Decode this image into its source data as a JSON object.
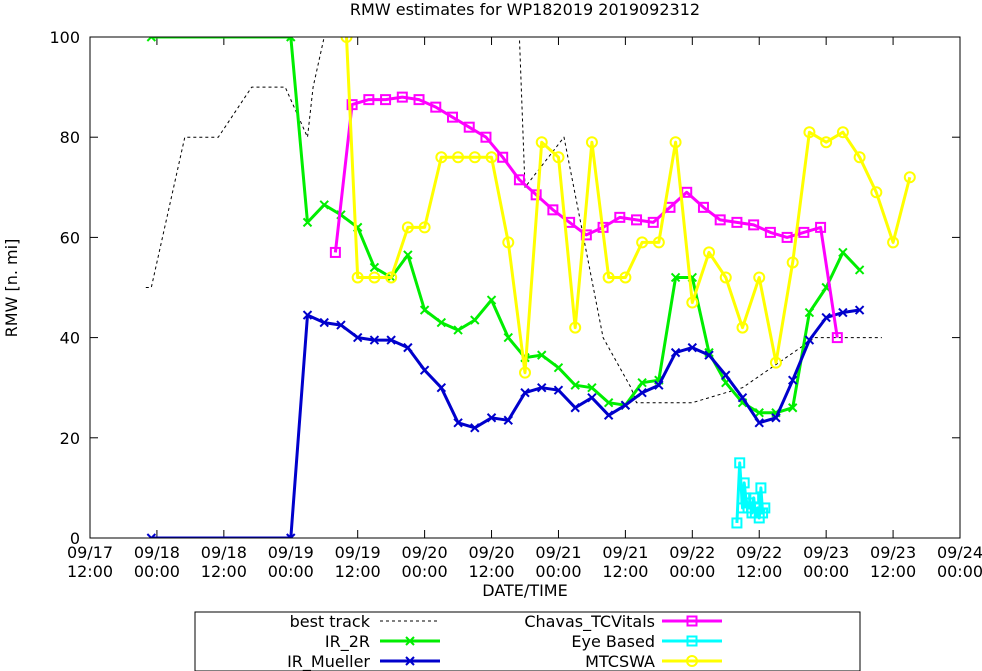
{
  "chart_data": {
    "type": "line",
    "title": "RMW estimates for WP182019 2019092312",
    "xlabel": "DATE/TIME",
    "ylabel": "RMW [n. mi]",
    "ylim": [
      0,
      100
    ],
    "xlim_hours": [
      0,
      156
    ],
    "yticks": [
      {
        "value": 0,
        "label": "0"
      },
      {
        "value": 20,
        "label": "20"
      },
      {
        "value": 40,
        "label": "40"
      },
      {
        "value": 60,
        "label": "60"
      },
      {
        "value": 80,
        "label": "80"
      },
      {
        "value": 100,
        "label": "100"
      }
    ],
    "xticks": [
      {
        "hours": 0,
        "line1": "09/17",
        "line2": "12:00"
      },
      {
        "hours": 12,
        "line1": "09/18",
        "line2": "00:00"
      },
      {
        "hours": 24,
        "line1": "09/18",
        "line2": "12:00"
      },
      {
        "hours": 36,
        "line1": "09/19",
        "line2": "00:00"
      },
      {
        "hours": 48,
        "line1": "09/19",
        "line2": "12:00"
      },
      {
        "hours": 60,
        "line1": "09/20",
        "line2": "00:00"
      },
      {
        "hours": 72,
        "line1": "09/20",
        "line2": "12:00"
      },
      {
        "hours": 84,
        "line1": "09/21",
        "line2": "00:00"
      },
      {
        "hours": 96,
        "line1": "09/21",
        "line2": "12:00"
      },
      {
        "hours": 108,
        "line1": "09/22",
        "line2": "00:00"
      },
      {
        "hours": 120,
        "line1": "09/22",
        "line2": "12:00"
      },
      {
        "hours": 132,
        "line1": "09/23",
        "line2": "00:00"
      },
      {
        "hours": 144,
        "line1": "09/23",
        "line2": "12:00"
      },
      {
        "hours": 156,
        "line1": "09/24",
        "line2": "00:00"
      }
    ],
    "series": [
      {
        "name": "best track",
        "color": "#000000",
        "style": "dashed",
        "marker": "none",
        "x": [
          10,
          11,
          17,
          23,
          29,
          35,
          39,
          40,
          42,
          43,
          77,
          78,
          85,
          92,
          97,
          98,
          108,
          117,
          130,
          142
        ],
        "y": [
          50,
          50,
          80,
          80,
          90,
          90,
          80,
          90,
          100,
          100,
          100,
          70,
          80,
          40,
          30,
          27,
          27,
          30,
          40,
          40
        ]
      },
      {
        "name": "IR_2R",
        "color": "#00ee00",
        "style": "solid",
        "marker": "x",
        "x": [
          11,
          36,
          39,
          42,
          45,
          48,
          51,
          54,
          57,
          60,
          63,
          66,
          69,
          72,
          75,
          78,
          81,
          84,
          87,
          90,
          93,
          96,
          99,
          102,
          105,
          108,
          111,
          114,
          117,
          120,
          123,
          126,
          129,
          132,
          135,
          138
        ],
        "y": [
          100,
          100,
          63,
          66.5,
          64.5,
          62,
          54,
          52,
          56.5,
          45.5,
          43,
          41.5,
          43.5,
          47.5,
          40,
          36,
          36.5,
          34,
          30.5,
          30,
          27,
          26.5,
          31,
          31.5,
          52,
          52,
          37,
          31,
          27,
          25,
          25,
          26,
          45,
          50,
          57,
          53.5
        ]
      },
      {
        "name": "IR_Mueller",
        "color": "#0000cc",
        "style": "solid",
        "marker": "x",
        "x": [
          11,
          36,
          39,
          42,
          45,
          48,
          51,
          54,
          57,
          60,
          63,
          66,
          69,
          72,
          75,
          78,
          81,
          84,
          87,
          90,
          93,
          96,
          99,
          102,
          105,
          108,
          111,
          114,
          117,
          120,
          123,
          126,
          129,
          132,
          135,
          138
        ],
        "y": [
          0,
          0,
          44.5,
          43,
          42.5,
          40,
          39.5,
          39.5,
          38,
          33.5,
          30,
          23,
          22,
          24,
          23.5,
          29,
          30,
          29.5,
          26,
          28,
          24.5,
          26.5,
          29,
          30.5,
          37,
          38,
          36.5,
          32.5,
          28,
          23,
          24,
          31.5,
          39.5,
          44,
          45,
          45.5
        ]
      },
      {
        "name": "Chavas_TCVitals",
        "color": "#ff00ff",
        "style": "solid",
        "marker": "square",
        "x": [
          44,
          47,
          50,
          53,
          56,
          59,
          62,
          65,
          68,
          71,
          74,
          77,
          80,
          83,
          86,
          89,
          92,
          95,
          98,
          101,
          104,
          107,
          110,
          113,
          116,
          119,
          122,
          125,
          128,
          131,
          134
        ],
        "y": [
          57,
          86.5,
          87.5,
          87.5,
          88,
          87.5,
          86,
          84,
          82,
          80,
          76,
          71.5,
          68.5,
          65.5,
          63,
          60.5,
          62,
          64,
          63.5,
          63,
          66,
          69,
          66,
          63.5,
          63,
          62.5,
          61,
          60,
          61,
          62,
          40
        ]
      },
      {
        "name": "Eye Based",
        "color": "#00ffff",
        "style": "solid",
        "marker": "square",
        "x": [
          116,
          116.5,
          117,
          117.3,
          117.6,
          118,
          118.3,
          118.7,
          119,
          119.3,
          119.7,
          120,
          120.3,
          120.6,
          121
        ],
        "y": [
          3,
          15,
          6,
          11,
          8,
          6,
          7,
          5,
          8,
          5,
          6,
          4,
          10,
          5,
          6
        ]
      },
      {
        "name": "MTCSWA",
        "color": "#ffff00",
        "style": "solid",
        "marker": "circle",
        "x": [
          46,
          48,
          51,
          54,
          57,
          60,
          63,
          66,
          69,
          72,
          75,
          78,
          81,
          84,
          87,
          90,
          93,
          96,
          99,
          102,
          105,
          108,
          111,
          114,
          117,
          120,
          123,
          126,
          129,
          132,
          135,
          138,
          141,
          144,
          147
        ],
        "y": [
          100,
          52,
          52,
          52,
          62,
          62,
          76,
          76,
          76,
          76,
          59,
          33,
          79,
          76,
          42,
          79,
          52,
          52,
          59,
          59,
          79,
          47,
          57,
          52,
          42,
          52,
          35,
          55,
          81,
          79,
          81,
          76,
          69,
          59,
          72
        ]
      }
    ],
    "legend": {
      "position": "bottom",
      "entries": [
        "best track",
        "IR_2R",
        "IR_Mueller",
        "Chavas_TCVitals",
        "Eye Based",
        "MTCSWA"
      ]
    }
  }
}
